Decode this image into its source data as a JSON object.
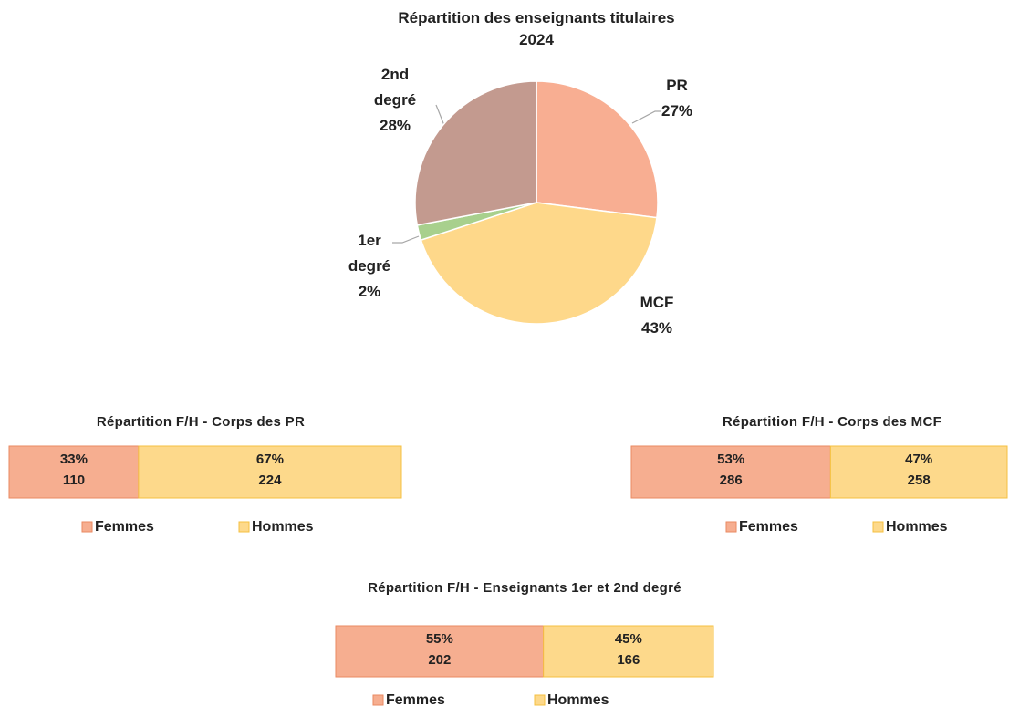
{
  "chart_data": [
    {
      "type": "pie",
      "title": "Répartition des enseignants titulaires",
      "subtitle": "2024",
      "categories": [
        "PR",
        "MCF",
        "1er degré",
        "2nd degré"
      ],
      "values": [
        27,
        43,
        2,
        28
      ],
      "value_labels": [
        "27%",
        "43%",
        "2%",
        "28%"
      ],
      "colors": [
        "#f8ae92",
        "#fed88a",
        "#a8d08d",
        "#c39a8f"
      ]
    },
    {
      "type": "stacked-bar-100",
      "title": "Répartition F/H - Corps des PR",
      "xlim": [
        0,
        100
      ],
      "legend": "bottom",
      "series": [
        {
          "name": "Femmes",
          "color": "#f6ae90",
          "values": [
            33
          ],
          "value_labels": [
            "33%"
          ],
          "counts": [
            110
          ]
        },
        {
          "name": "Hommes",
          "color": "#fdd98b",
          "values": [
            67
          ],
          "value_labels": [
            "67%"
          ],
          "counts": [
            224
          ]
        }
      ]
    },
    {
      "type": "stacked-bar-100",
      "title": "Répartition F/H - Corps des MCF",
      "xlim": [
        0,
        100
      ],
      "legend": "bottom",
      "series": [
        {
          "name": "Femmes",
          "color": "#f6ae90",
          "values": [
            53
          ],
          "value_labels": [
            "53%"
          ],
          "counts": [
            286
          ]
        },
        {
          "name": "Hommes",
          "color": "#fdd98b",
          "values": [
            47
          ],
          "value_labels": [
            "47%"
          ],
          "counts": [
            258
          ]
        }
      ]
    },
    {
      "type": "stacked-bar-100",
      "title": "Répartition F/H - Enseignants 1er et 2nd degré",
      "xlim": [
        0,
        100
      ],
      "legend": "bottom",
      "series": [
        {
          "name": "Femmes",
          "color": "#f6ae90",
          "values": [
            55
          ],
          "value_labels": [
            "55%"
          ],
          "counts": [
            202
          ]
        },
        {
          "name": "Hommes",
          "color": "#fdd98b",
          "values": [
            45
          ],
          "value_labels": [
            "45%"
          ],
          "counts": [
            166
          ]
        }
      ]
    }
  ]
}
